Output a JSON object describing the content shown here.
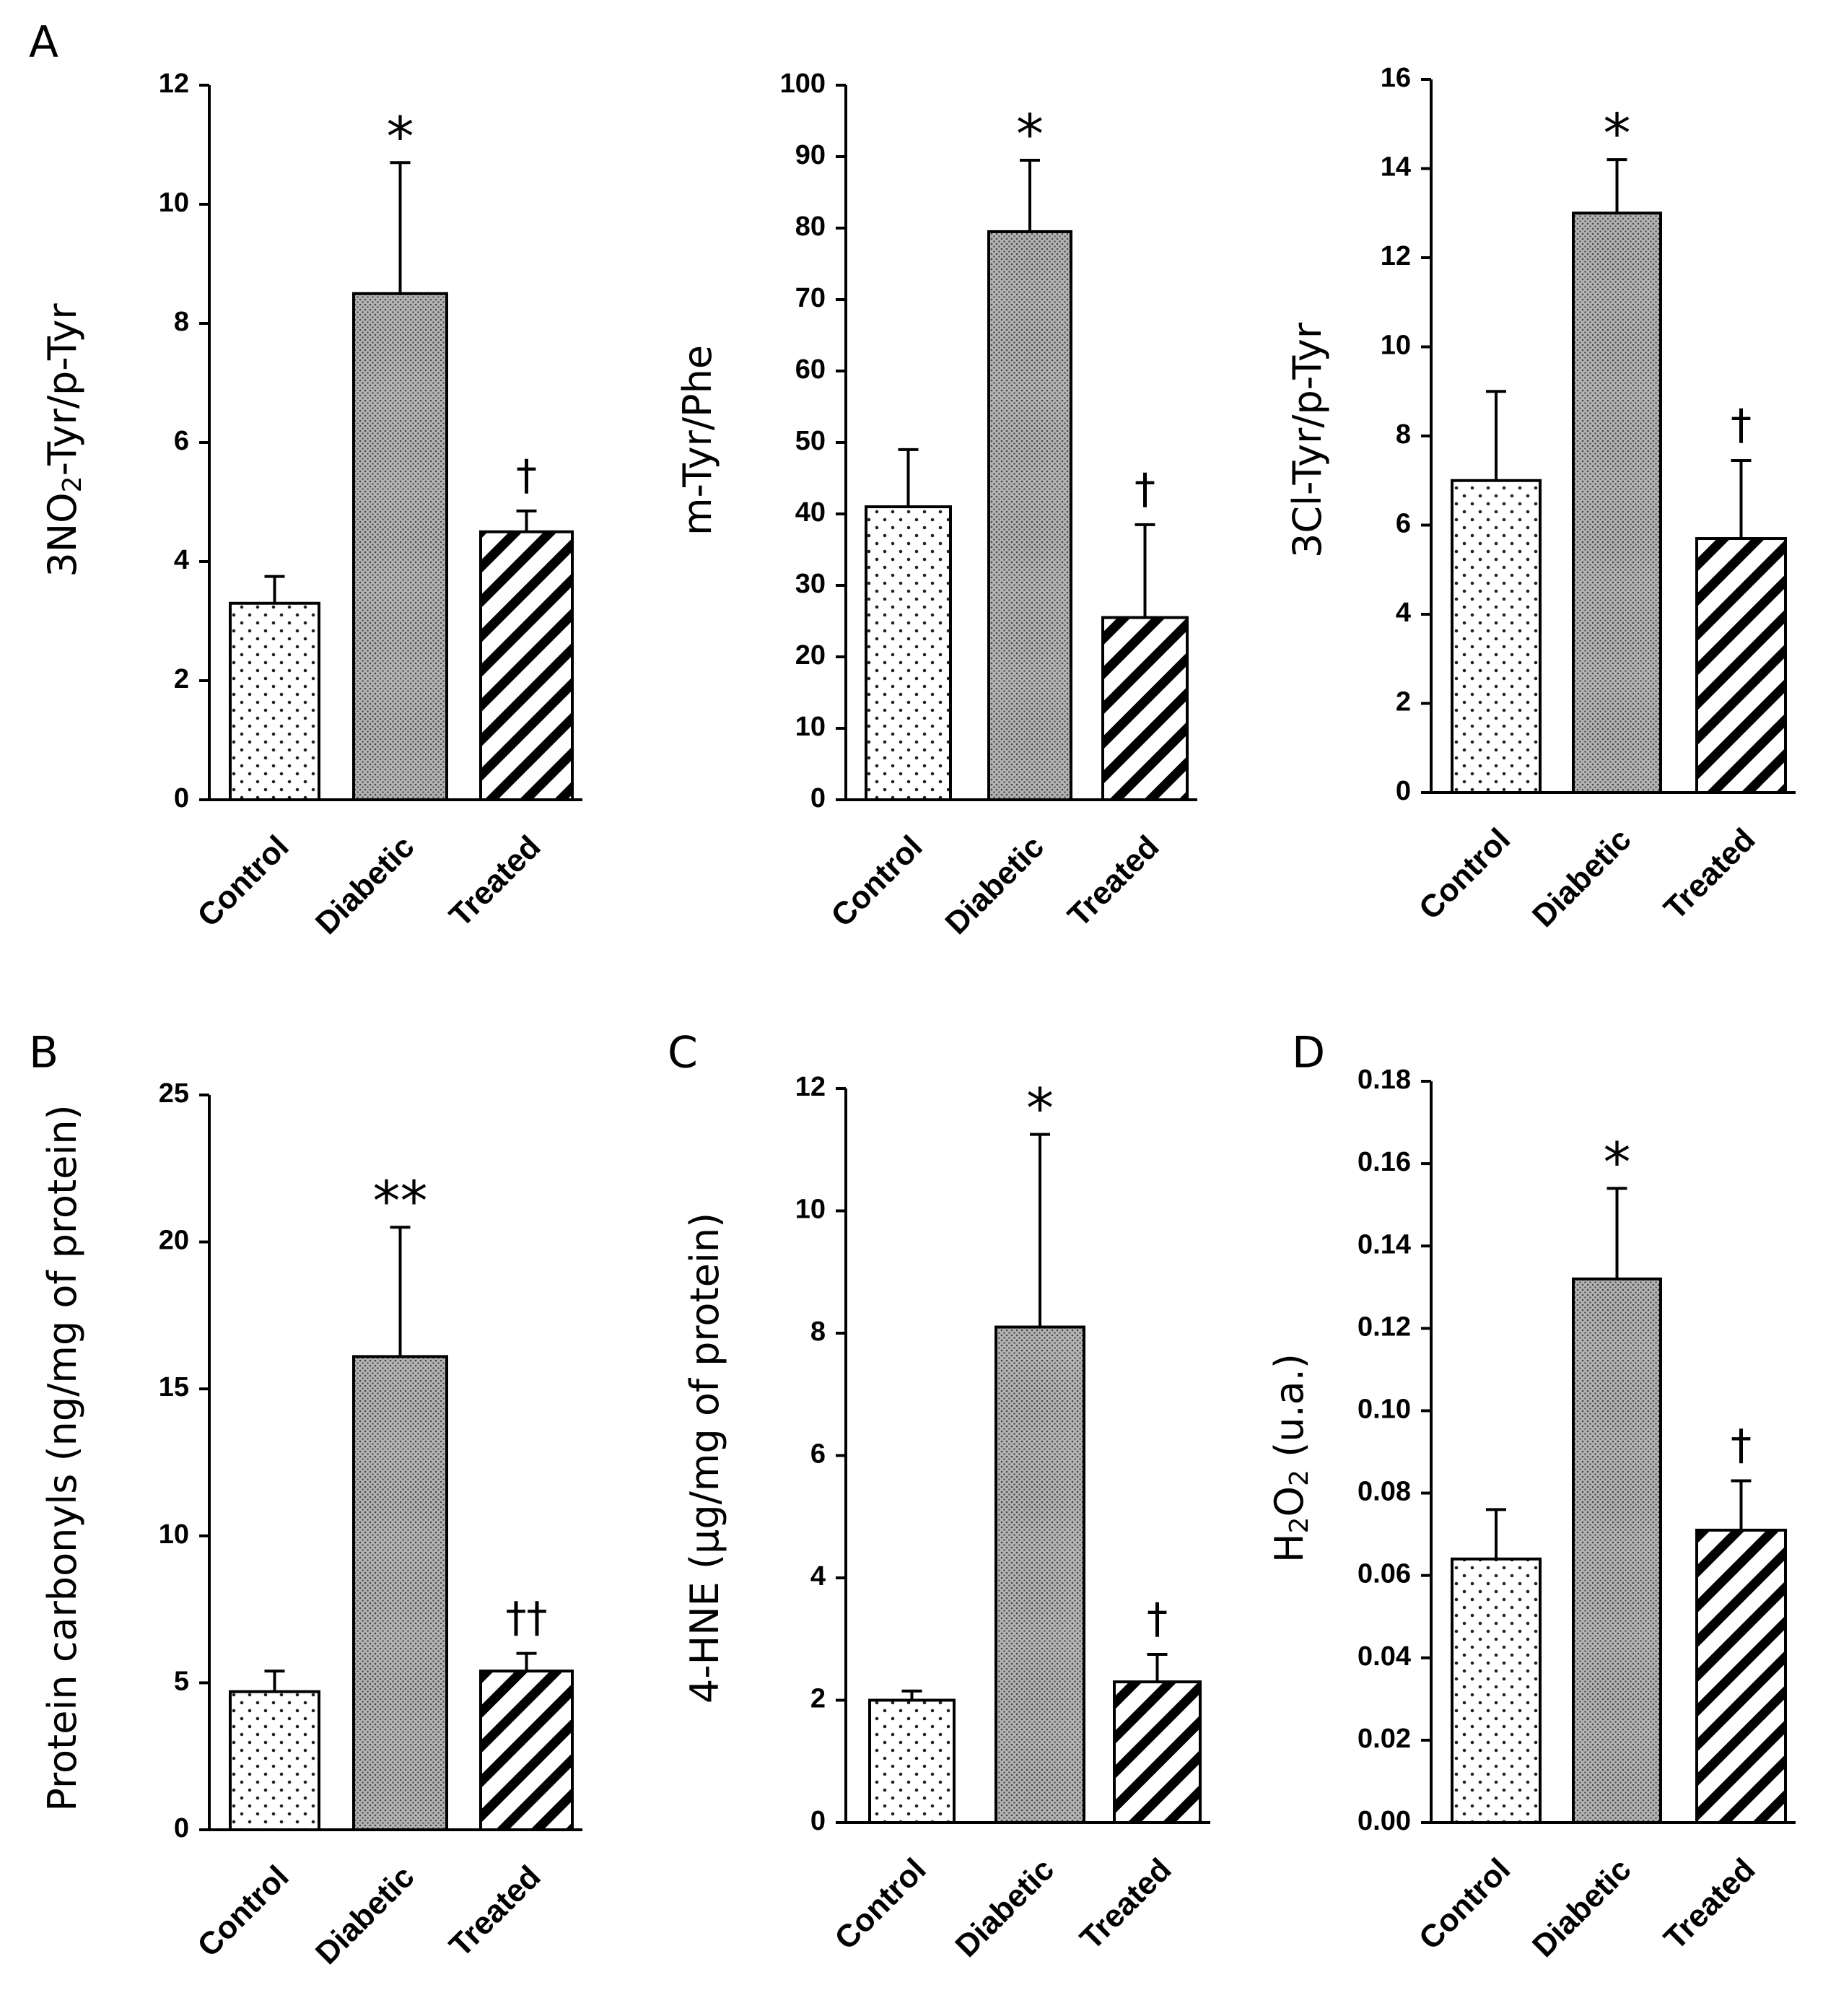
{
  "figure": {
    "categories": [
      "Control",
      "Diabetic",
      "Treated"
    ],
    "fill_patterns": [
      "sparse-dots",
      "dense-dots",
      "diagonal-hatch"
    ]
  },
  "chart_data": [
    {
      "type": "bar",
      "panel_label": "A",
      "ylabel_main": "3NO",
      "ylabel_sub": "2",
      "ylabel_tail": "-Tyr/p-Tyr",
      "categories": [
        "Control",
        "Diabetic",
        "Treated"
      ],
      "values": [
        3.3,
        8.5,
        4.5
      ],
      "errors": [
        0.45,
        2.2,
        0.35
      ],
      "significance": [
        "",
        "*",
        "†"
      ],
      "ylim": [
        0,
        12
      ],
      "yticks": [
        0,
        2,
        4,
        6,
        8,
        10,
        12
      ],
      "ytick_labels": [
        "0",
        "2",
        "4",
        "6",
        "8",
        "10",
        "12"
      ]
    },
    {
      "type": "bar",
      "panel_label": "",
      "ylabel_main": "m-Tyr/Phe",
      "ylabel_sub": "",
      "ylabel_tail": "",
      "categories": [
        "Control",
        "Diabetic",
        "Treated"
      ],
      "values": [
        41,
        79.5,
        25.5
      ],
      "errors": [
        8,
        10,
        13
      ],
      "significance": [
        "",
        "*",
        "†"
      ],
      "ylim": [
        0,
        100
      ],
      "yticks": [
        0,
        10,
        20,
        30,
        40,
        50,
        60,
        70,
        80,
        90,
        100
      ],
      "ytick_labels": [
        "0",
        "10",
        "20",
        "30",
        "40",
        "50",
        "60",
        "70",
        "80",
        "90",
        "100"
      ]
    },
    {
      "type": "bar",
      "panel_label": "",
      "ylabel_main": "3Cl-Tyr/p-Tyr",
      "ylabel_sub": "",
      "ylabel_tail": "",
      "categories": [
        "Control",
        "Diabetic",
        "Treated"
      ],
      "values": [
        7.0,
        13.0,
        5.7
      ],
      "errors": [
        2.0,
        1.2,
        1.75
      ],
      "significance": [
        "",
        "*",
        "†"
      ],
      "ylim": [
        0,
        16
      ],
      "yticks": [
        0,
        2,
        4,
        6,
        8,
        10,
        12,
        14,
        16
      ],
      "ytick_labels": [
        "0",
        "2",
        "4",
        "6",
        "8",
        "10",
        "12",
        "14",
        "16"
      ]
    },
    {
      "type": "bar",
      "panel_label": "B",
      "ylabel_main": "Protein carbonyls (ng/mg of protein)",
      "ylabel_sub": "",
      "ylabel_tail": "",
      "categories": [
        "Control",
        "Diabetic",
        "Treated"
      ],
      "values": [
        4.7,
        16.1,
        5.4
      ],
      "errors": [
        0.7,
        4.4,
        0.6
      ],
      "significance": [
        "",
        "**",
        "††"
      ],
      "ylim": [
        0,
        25
      ],
      "yticks": [
        0,
        5,
        10,
        15,
        20,
        25
      ],
      "ytick_labels": [
        "0",
        "5",
        "10",
        "15",
        "20",
        "25"
      ]
    },
    {
      "type": "bar",
      "panel_label": "C",
      "ylabel_main": "4-HNE (µg/mg of protein)",
      "ylabel_sub": "",
      "ylabel_tail": "",
      "categories": [
        "Control",
        "Diabetic",
        "Treated"
      ],
      "values": [
        2.0,
        8.1,
        2.3
      ],
      "errors": [
        0.15,
        3.15,
        0.45
      ],
      "significance": [
        "",
        "*",
        "†"
      ],
      "ylim": [
        0,
        12
      ],
      "yticks": [
        0,
        2,
        4,
        6,
        8,
        10,
        12
      ],
      "ytick_labels": [
        "0",
        "2",
        "4",
        "6",
        "8",
        "10",
        "12"
      ]
    },
    {
      "type": "bar",
      "panel_label": "D",
      "ylabel_main": "H",
      "ylabel_sub": "2",
      "ylabel_tail": "O",
      "ylabel_sub2": "2",
      "ylabel_tail2": " (u.a.)",
      "categories": [
        "Control",
        "Diabetic",
        "Treated"
      ],
      "values": [
        0.064,
        0.132,
        0.071
      ],
      "errors": [
        0.012,
        0.022,
        0.012
      ],
      "significance": [
        "",
        "*",
        "†"
      ],
      "ylim": [
        0,
        0.18
      ],
      "yticks": [
        0,
        0.02,
        0.04,
        0.06,
        0.08,
        0.1,
        0.12,
        0.14,
        0.16,
        0.18
      ],
      "ytick_labels": [
        "0.00",
        "0.02",
        "0.04",
        "0.06",
        "0.08",
        "0.10",
        "0.12",
        "0.14",
        "0.16",
        "0.18"
      ]
    }
  ]
}
